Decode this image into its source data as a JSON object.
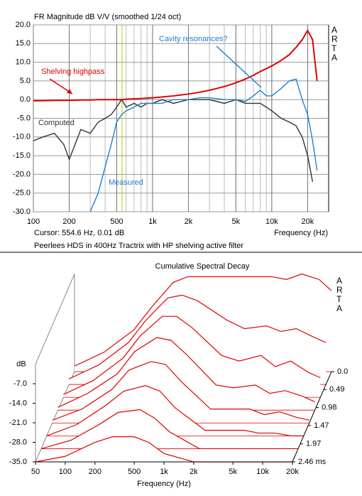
{
  "chart_data": [
    {
      "type": "line",
      "title": "FR Magnitude dB V/V (smoothed 1/24 oct)",
      "side_label": "ARTA",
      "x_label": "Frequency (Hz)",
      "cursor": "Cursor: 554.6 Hz, 0.01 dB",
      "cursor_x": 554.6,
      "caption": "Peerlees HDS in 400Hz Tractrix with HP shelving active filter",
      "log_x": true,
      "grid": true,
      "xlim": [
        100,
        30000
      ],
      "xticks": [
        100,
        200,
        500,
        {
          "value": 1000,
          "label": "1k"
        },
        {
          "value": 2000,
          "label": "2k"
        },
        {
          "value": 5000,
          "label": "5k"
        },
        {
          "value": 10000,
          "label": "10k"
        },
        {
          "value": 20000,
          "label": "20k"
        }
      ],
      "ylim": [
        -30,
        20
      ],
      "yticks": [
        {
          "value": -30,
          "label": "-30.0"
        },
        {
          "value": -25,
          "label": "-25.0"
        },
        {
          "value": -20,
          "label": "-20.0"
        },
        {
          "value": -15,
          "label": "-15.0"
        },
        {
          "value": -10,
          "label": "-10.0"
        },
        {
          "value": -5,
          "label": "-5.0"
        },
        {
          "value": 0,
          "label": "0.0"
        },
        {
          "value": 5,
          "label": "5.0"
        },
        {
          "value": 10,
          "label": "10.0"
        },
        {
          "value": 15,
          "label": "15.0"
        },
        {
          "value": 20,
          "label": "20.0"
        }
      ],
      "x": [
        100,
        120,
        150,
        180,
        200,
        250,
        300,
        350,
        400,
        450,
        500,
        550,
        600,
        700,
        800,
        900,
        1000,
        1200,
        1500,
        2000,
        2500,
        3000,
        4000,
        5000,
        6000,
        7000,
        8000,
        9000,
        10000,
        12000,
        14000,
        16000,
        18000,
        20000,
        22000,
        24000
      ],
      "series": [
        {
          "name": "Shelving highpass",
          "color": "#e00000",
          "values": [
            -0.3,
            -0.3,
            -0.2,
            -0.2,
            -0.2,
            -0.1,
            -0.1,
            0,
            0,
            0,
            0,
            0,
            0.1,
            0.2,
            0.3,
            0.4,
            0.5,
            0.7,
            1,
            1.5,
            2,
            2.5,
            3.5,
            4.5,
            5.5,
            6.5,
            7.5,
            8.3,
            9,
            10.5,
            12,
            14,
            16,
            18.5,
            16,
            5
          ]
        },
        {
          "name": "Computed",
          "color": "#333333",
          "values": [
            -11,
            -10,
            -9,
            -12,
            -16,
            -8,
            -9,
            -6,
            -5,
            -4,
            -2,
            0,
            -2,
            -1,
            -2,
            -1,
            -1,
            0,
            -1,
            0,
            0,
            0,
            -1,
            0,
            -1,
            -1,
            -1,
            -2,
            -3,
            -5,
            -6,
            -7,
            -10,
            -15,
            -22,
            null
          ]
        },
        {
          "name": "Measured",
          "color": "#2080d0",
          "values": [
            null,
            null,
            null,
            null,
            null,
            null,
            -30,
            -25,
            -18,
            -12,
            -6,
            -4,
            -3,
            -2,
            -1,
            -1,
            -1,
            -1,
            0,
            0,
            0.5,
            0.5,
            0,
            0,
            -0.5,
            1,
            2.5,
            1,
            1,
            3,
            5,
            5.5,
            0,
            -4,
            -11,
            -19
          ]
        }
      ],
      "annotation": "Cavity resonances?"
    },
    {
      "type": "waterfall",
      "title": "Cumulative Spectral Decay",
      "side_label": "ARTA",
      "x_label": "Frequency (Hz)",
      "y_label": "dB",
      "log_x": true,
      "color": "#e00000",
      "xlim": [
        50,
        20000
      ],
      "xticks": [
        50,
        100,
        200,
        500,
        {
          "value": 1000,
          "label": "1k"
        },
        {
          "value": 2000,
          "label": "2k"
        },
        {
          "value": 5000,
          "label": "5k"
        },
        {
          "value": 10000,
          "label": "10k"
        },
        {
          "value": 20000,
          "label": "20k"
        }
      ],
      "ylim": [
        -35,
        0
      ],
      "yticks": [
        {
          "value": -35,
          "label": "-35.0"
        },
        {
          "value": -28,
          "label": "-28.0"
        },
        {
          "value": -21,
          "label": "-21.0"
        },
        {
          "value": -14,
          "label": "-14.0"
        },
        {
          "value": -7,
          "label": "-7.0"
        }
      ],
      "zlim": [
        0,
        2.46
      ],
      "zticks": [
        {
          "value": 0,
          "label": "0.0"
        },
        0.49,
        0.98,
        1.47,
        1.97,
        {
          "value": 2.46,
          "label": "2.46 ms"
        }
      ],
      "x": [
        50,
        100,
        200,
        300,
        500,
        700,
        1000,
        2000,
        3000,
        5000,
        7000,
        10000,
        15000,
        20000
      ],
      "slices": [
        {
          "time": 0,
          "values": [
            -33,
            -28,
            -20,
            -12,
            -3,
            -1,
            -1,
            -1,
            -1,
            -1,
            -2,
            0,
            -2,
            -6
          ]
        },
        {
          "time": 0.35,
          "values": [
            -33,
            -28,
            -20,
            -12,
            -4,
            -3,
            -5,
            -12,
            -15,
            -14,
            -16,
            -15,
            -18,
            -20
          ]
        },
        {
          "time": 0.7,
          "values": [
            -34,
            -29,
            -21,
            -13,
            -6,
            -6,
            -10,
            -20,
            -22,
            -20,
            -24,
            -22,
            -26,
            -28
          ]
        },
        {
          "time": 1.05,
          "values": [
            -34,
            -29,
            -22,
            -14,
            -9,
            -10,
            -15,
            -26,
            -27,
            -26,
            -29,
            -28,
            -30,
            -32
          ]
        },
        {
          "time": 1.4,
          "values": [
            -34,
            -30,
            -23,
            -16,
            -13,
            -14,
            -20,
            -30,
            -30,
            -30,
            -32,
            -31,
            -33,
            -34
          ]
        },
        {
          "time": 1.75,
          "values": [
            -35,
            -31,
            -24,
            -19,
            -17,
            -19,
            -25,
            -33,
            -33,
            -33,
            -34,
            -34,
            -35,
            -35
          ]
        },
        {
          "time": 2.1,
          "values": [
            -35,
            -32,
            -26,
            -22,
            -21,
            -24,
            -29,
            -35,
            -35,
            -35,
            -35,
            -35,
            -35,
            -35
          ]
        },
        {
          "time": 2.46,
          "values": [
            -35,
            -33,
            -28,
            -26,
            -26,
            -28,
            -32,
            -35,
            -35,
            -35,
            -35,
            -35,
            -35,
            -35
          ]
        }
      ]
    }
  ]
}
